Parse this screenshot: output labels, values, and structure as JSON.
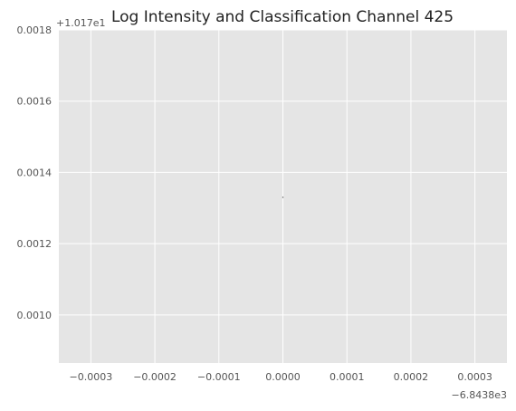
{
  "chart_data": {
    "type": "scatter",
    "title": "Log Intensity and Classification Channel 425",
    "xlabel": "",
    "ylabel": "",
    "x_offset_label": "−6.8438e3",
    "y_offset_label": "+1.017e1",
    "xlim": [
      -0.00035,
      0.00035
    ],
    "ylim": [
      0.000865,
      0.0018
    ],
    "x_ticks": [
      -0.0003,
      -0.0002,
      -0.0001,
      0.0,
      0.0001,
      0.0002,
      0.0003
    ],
    "x_tick_labels": [
      "−0.0003",
      "−0.0002",
      "−0.0001",
      "0.0000",
      "0.0001",
      "0.0002",
      "0.0003"
    ],
    "y_ticks": [
      0.001,
      0.0012,
      0.0014,
      0.0016,
      0.0018
    ],
    "y_tick_labels": [
      "0.0010",
      "0.0012",
      "0.0014",
      "0.0016",
      "0.0018"
    ],
    "grid": true,
    "series": [
      {
        "x": [
          0.0
        ],
        "y": [
          0.00133
        ]
      }
    ],
    "colors": {
      "plot_background": "#e5e5e5",
      "grid": "#ffffff",
      "marker": "#333333"
    }
  }
}
